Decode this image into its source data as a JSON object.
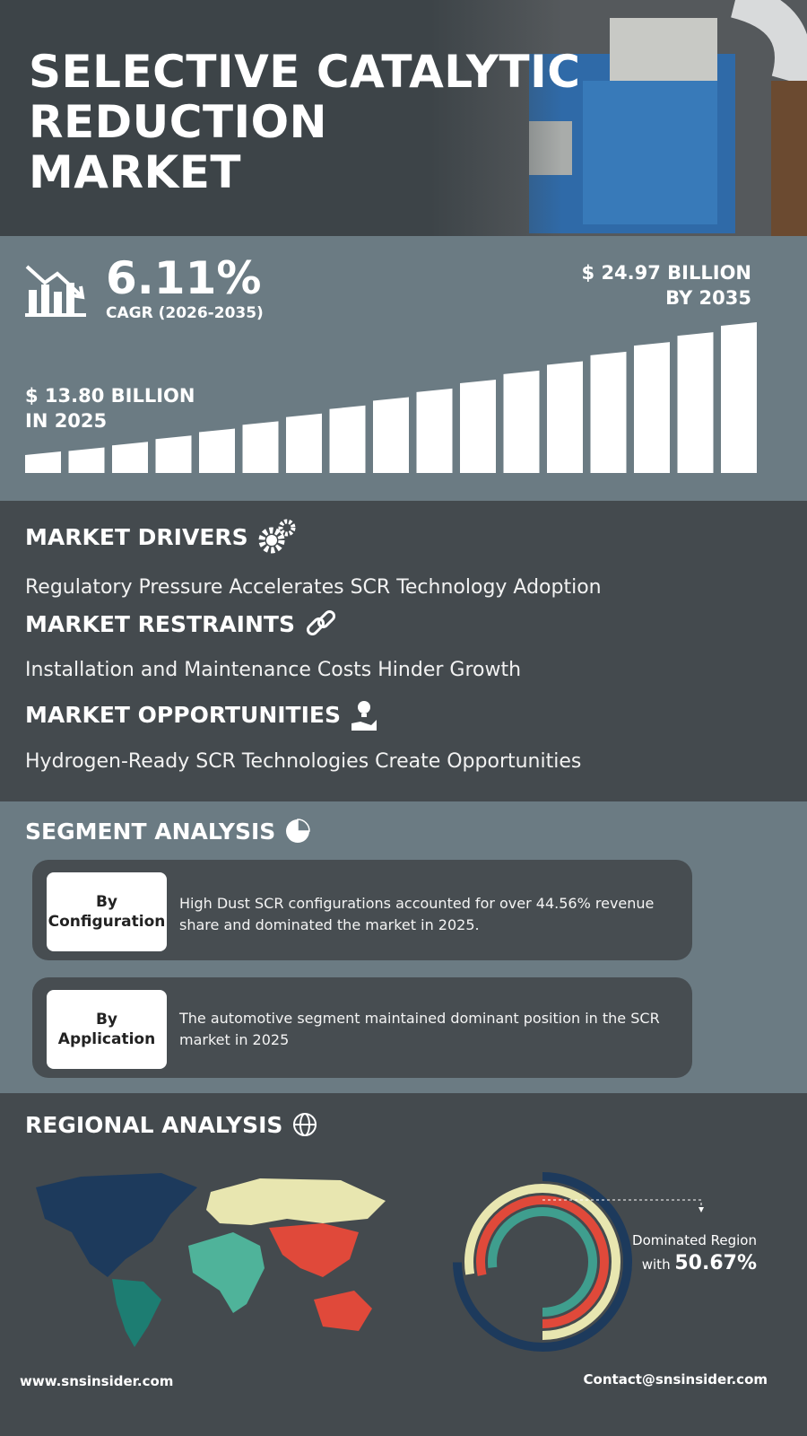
{
  "header": {
    "title_lines": [
      "SELECTIVE CATALYTIC",
      "REDUCTION",
      "MARKET"
    ]
  },
  "stats": {
    "cagr": {
      "value": "6.11%",
      "label": "CAGR (2026-2035)"
    },
    "end": {
      "amount": "$ 24.97 BILLION",
      "period": "BY 2035"
    },
    "start": {
      "amount": "$ 13.80 BILLION",
      "period": "IN 2025"
    }
  },
  "market": {
    "drivers": {
      "heading": "MARKET DRIVERS",
      "text": "Regulatory Pressure Accelerates SCR Technology Adoption"
    },
    "restraints": {
      "heading": "MARKET RESTRAINTS",
      "text": "Installation and Maintenance Costs Hinder Growth"
    },
    "opportunities": {
      "heading": "MARKET OPPORTUNITIES",
      "text": "Hydrogen-Ready SCR Technologies Create Opportunities"
    }
  },
  "segment": {
    "heading": "SEGMENT ANALYSIS",
    "items": [
      {
        "label": [
          "By",
          "Configuration"
        ],
        "text": "High Dust SCR configurations accounted for over 44.56% revenue share and dominated the market in 2025."
      },
      {
        "label": [
          "By",
          "Application"
        ],
        "text": "The automotive segment maintained dominant position in the SCR market in 2025"
      }
    ]
  },
  "regional": {
    "heading": "REGIONAL ANALYSIS",
    "note": "Dominated Region",
    "with": "with",
    "share": "50.67%"
  },
  "footer": {
    "website": "www.snsinsider.com",
    "contact": "Contact@snsinsider.com"
  }
}
